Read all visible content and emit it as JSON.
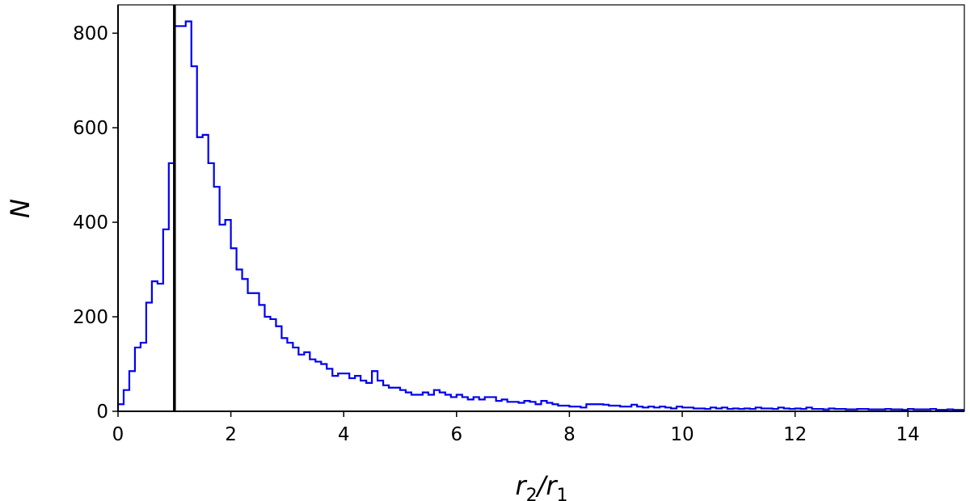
{
  "chart_data": {
    "type": "histogram",
    "title": "",
    "xlabel": {
      "base1": "r",
      "sub1": "2",
      "slash": "/",
      "base2": "r",
      "sub2": "1"
    },
    "ylabel": "N",
    "xlim": [
      0,
      15
    ],
    "ylim": [
      0,
      860
    ],
    "xticks": [
      0,
      2,
      4,
      6,
      8,
      10,
      12,
      14
    ],
    "yticks": [
      0,
      200,
      400,
      600,
      800
    ],
    "grid": false,
    "legend": "none",
    "series_color": "#0000ee",
    "vline": {
      "x": 1.0,
      "color": "#000000"
    },
    "bin_width": 0.1,
    "bin_start": 0,
    "counts": [
      15,
      45,
      85,
      135,
      145,
      230,
      275,
      270,
      385,
      525,
      815,
      815,
      825,
      730,
      580,
      585,
      525,
      475,
      395,
      405,
      345,
      300,
      280,
      250,
      250,
      225,
      200,
      195,
      180,
      155,
      145,
      135,
      120,
      125,
      110,
      105,
      100,
      90,
      75,
      80,
      80,
      70,
      75,
      65,
      60,
      85,
      65,
      55,
      50,
      50,
      45,
      40,
      35,
      35,
      40,
      35,
      45,
      40,
      35,
      30,
      35,
      30,
      25,
      30,
      25,
      30,
      30,
      22,
      25,
      20,
      20,
      18,
      22,
      20,
      15,
      22,
      18,
      15,
      12,
      12,
      10,
      10,
      8,
      15,
      15,
      15,
      14,
      12,
      12,
      10,
      10,
      14,
      10,
      8,
      10,
      8,
      10,
      8,
      6,
      10,
      8,
      8,
      6,
      6,
      5,
      8,
      6,
      8,
      5,
      6,
      5,
      6,
      5,
      8,
      6,
      6,
      5,
      8,
      6,
      5,
      6,
      5,
      8,
      5,
      5,
      4,
      6,
      5,
      5,
      4,
      4,
      5,
      5,
      4,
      4,
      4,
      5,
      4,
      4,
      3,
      5,
      4,
      4,
      4,
      5,
      3,
      3,
      4,
      3,
      3
    ]
  }
}
